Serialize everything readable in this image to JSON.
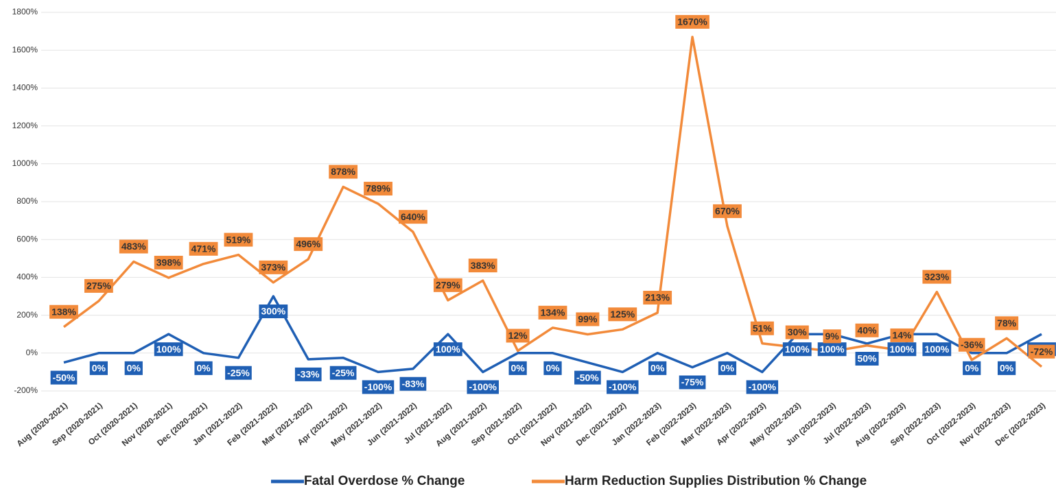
{
  "chart_data": {
    "type": "line",
    "categories": [
      "Aug (2020-2021)",
      "Sep (2020-2021)",
      "Oct (2020-2021)",
      "Nov (2020-2021)",
      "Dec (2020-2021)",
      "Jan (2021-2022)",
      "Feb (2021-2022)",
      "Mar (2021-2022)",
      "Apr (2021-2022)",
      "May (2021-2022)",
      "Jun (2021-2022)",
      "Jul (2021-2022)",
      "Aug (2021-2022)",
      "Sep (2021-2022)",
      "Oct (2021-2022)",
      "Nov (2021-2022)",
      "Dec (2021-2022)",
      "Jan (2022-2023)",
      "Feb (2022-2023)",
      "Mar (2022-2023)",
      "Apr (2022-2023)",
      "May (2022-2023)",
      "Jun (2022-2023)",
      "Jul (2022-2023)",
      "Aug (2022-2023)",
      "Sep (2022-2023)",
      "Oct (2022-2023)",
      "Nov (2022-2023)",
      "Dec (2022-2023)"
    ],
    "series": [
      {
        "name": "Fatal Overdose % Change",
        "color": "#1f5fb4",
        "values": [
          -50,
          0,
          0,
          100,
          0,
          -25,
          300,
          -33,
          -25,
          -100,
          -83,
          100,
          -100,
          0,
          0,
          -50,
          -100,
          0,
          -75,
          0,
          -100,
          100,
          100,
          50,
          100,
          100,
          0,
          0,
          100
        ],
        "value_labels": [
          "-50%",
          "0%",
          "0%",
          "100%",
          "0%",
          "-25%",
          "300%",
          "-33%",
          "-25%",
          "-100%",
          "-83%",
          "100%",
          "-100%",
          "0%",
          "0%",
          "-50%",
          "-100%",
          "0%",
          "-75%",
          "0%",
          "-100%",
          "100%",
          "100%",
          "50%",
          "100%",
          "100%",
          "0%",
          "0%",
          "100%"
        ]
      },
      {
        "name": "Harm Reduction Supplies Distribution % Change",
        "color": "#f28a3a",
        "values": [
          138,
          275,
          483,
          398,
          471,
          519,
          373,
          496,
          878,
          789,
          640,
          279,
          383,
          12,
          134,
          99,
          125,
          213,
          1670,
          670,
          51,
          30,
          9,
          40,
          14,
          323,
          -36,
          78,
          -72
        ],
        "value_labels": [
          "138%",
          "275%",
          "483%",
          "398%",
          "471%",
          "519%",
          "373%",
          "496%",
          "878%",
          "789%",
          "640%",
          "279%",
          "383%",
          "12%",
          "134%",
          "99%",
          "125%",
          "213%",
          "1670%",
          "670%",
          "51%",
          "30%",
          "9%",
          "40%",
          "14%",
          "323%",
          "-36%",
          "78%",
          "-72%"
        ]
      }
    ],
    "ylim": [
      -200,
      1800
    ],
    "yticks": [
      {
        "value": -200,
        "label": "-200%"
      },
      {
        "value": 0,
        "label": "0%"
      },
      {
        "value": 200,
        "label": "200%"
      },
      {
        "value": 400,
        "label": "400%"
      },
      {
        "value": 600,
        "label": "600%"
      },
      {
        "value": 800,
        "label": "800%"
      },
      {
        "value": 1000,
        "label": "1000%"
      },
      {
        "value": 1200,
        "label": "1200%"
      },
      {
        "value": 1400,
        "label": "1400%"
      },
      {
        "value": 1600,
        "label": "1600%"
      },
      {
        "value": 1800,
        "label": "1800%"
      }
    ],
    "grid": true
  }
}
